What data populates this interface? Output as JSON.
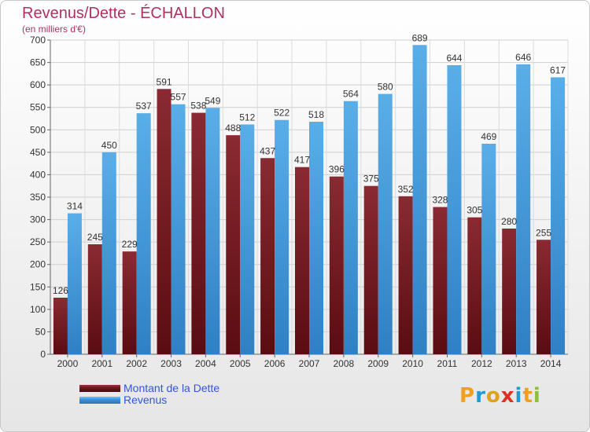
{
  "header": {
    "title": "Revenus/Dette - ÉCHALLON",
    "unit": "(en milliers d'€)"
  },
  "legend": {
    "items": [
      {
        "label": "Montant de la Dette",
        "color": "#6b1a1f"
      },
      {
        "label": "Revenus",
        "color": "#3b8fd6"
      }
    ]
  },
  "logo": {
    "letters": [
      "P",
      "r",
      "o",
      "x",
      "i",
      "t",
      "i"
    ],
    "colors": [
      "#f0a020",
      "#1f9ad6",
      "#e0a020",
      "#e03020",
      "#1f9ad6",
      "#f0a020",
      "#8cc03a"
    ]
  },
  "chart_data": {
    "type": "bar",
    "title": "Revenus/Dette - ÉCHALLON",
    "subtitle": "(en milliers d'€)",
    "categories": [
      "2000",
      "2001",
      "2002",
      "2003",
      "2004",
      "2005",
      "2006",
      "2007",
      "2008",
      "2009",
      "2010",
      "2011",
      "2012",
      "2013",
      "2014"
    ],
    "series": [
      {
        "name": "Montant de la Dette",
        "color": "#7a1e25",
        "values": [
          126,
          245,
          229,
          591,
          538,
          488,
          437,
          417,
          396,
          375,
          352,
          328,
          305,
          280,
          255
        ]
      },
      {
        "name": "Revenus",
        "color": "#3b95db",
        "values": [
          314,
          450,
          537,
          557,
          549,
          512,
          522,
          518,
          564,
          580,
          689,
          644,
          469,
          646,
          617
        ]
      }
    ],
    "ylim": [
      0,
      700
    ],
    "yticks": [
      0,
      50,
      100,
      150,
      200,
      250,
      300,
      350,
      400,
      450,
      500,
      550,
      600,
      650,
      700
    ],
    "grid": true,
    "legend_position": "bottom-left"
  }
}
